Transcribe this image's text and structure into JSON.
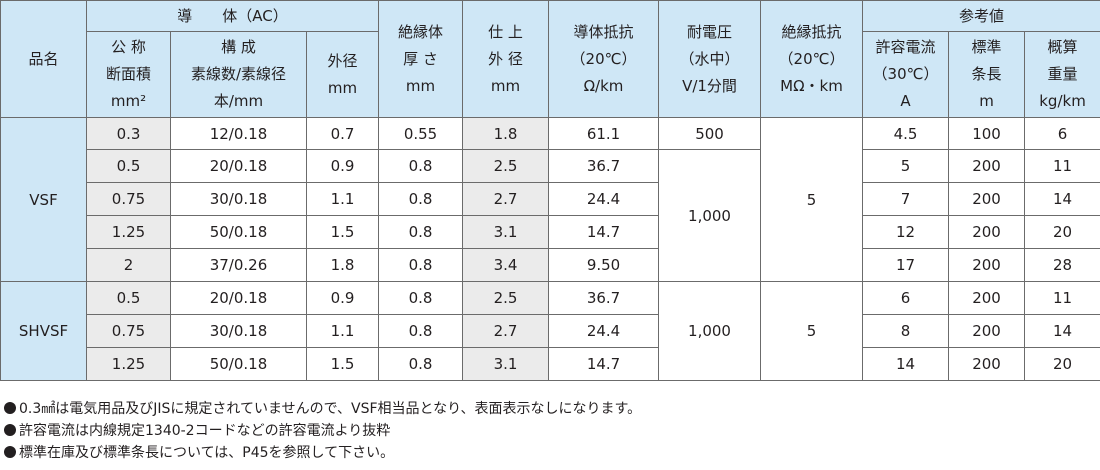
{
  "header": {
    "hinmei": "品名",
    "conductor": "導　　体（AC）",
    "conductor_area": [
      "公 称",
      "断面積",
      "mm²"
    ],
    "conductor_strands": [
      "構 成",
      "素線数/素線径",
      "本/mm"
    ],
    "conductor_od": [
      "外径",
      "mm"
    ],
    "insulation": [
      "絶縁体",
      "厚 さ",
      "mm"
    ],
    "finish": [
      "仕 上",
      "外 径",
      "mm"
    ],
    "resistance": [
      "導体抵抗",
      "（20℃）",
      "Ω/km"
    ],
    "withstand": [
      "耐電圧",
      "（水中）",
      "V/1分間"
    ],
    "insul_resistance": [
      "絶縁抵抗",
      "（20℃）",
      "MΩ・km"
    ],
    "reference": "参考値",
    "current": [
      "許容電流",
      "（30℃）",
      "A"
    ],
    "length": [
      "標準",
      "条長",
      "m"
    ],
    "weight": [
      "概算",
      "重量",
      "kg/km"
    ]
  },
  "groups": [
    {
      "name": "VSF",
      "rows": [
        [
          "0.3",
          "12/0.18",
          "0.7",
          "0.55",
          "1.8",
          "61.1",
          "4.5",
          "100",
          "6"
        ],
        [
          "0.5",
          "20/0.18",
          "0.9",
          "0.8",
          "2.5",
          "36.7",
          "5",
          "200",
          "11"
        ],
        [
          "0.75",
          "30/0.18",
          "1.1",
          "0.8",
          "2.7",
          "24.4",
          "7",
          "200",
          "14"
        ],
        [
          "1.25",
          "50/0.18",
          "1.5",
          "0.8",
          "3.1",
          "14.7",
          "12",
          "200",
          "20"
        ],
        [
          "2",
          "37/0.26",
          "1.8",
          "0.8",
          "3.4",
          "9.50",
          "17",
          "200",
          "28"
        ]
      ],
      "withstand_first": "500",
      "withstand_rest": "1,000",
      "insul_resistance": "5"
    },
    {
      "name": "SHVSF",
      "rows": [
        [
          "0.5",
          "20/0.18",
          "0.9",
          "0.8",
          "2.5",
          "36.7",
          "6",
          "200",
          "11"
        ],
        [
          "0.75",
          "30/0.18",
          "1.1",
          "0.8",
          "2.7",
          "24.4",
          "8",
          "200",
          "14"
        ],
        [
          "1.25",
          "50/0.18",
          "1.5",
          "0.8",
          "3.1",
          "14.7",
          "14",
          "200",
          "20"
        ]
      ],
      "withstand": "1,000",
      "insul_resistance": "5"
    }
  ],
  "notes": [
    "0.3㎟は電気用品及びJISに規定されていませんので、VSF相当品となり、表面表示なしになります。",
    "許容電流は内線規定1340-2コードなどの許容電流より抜粋",
    "標準在庫及び標準条長については、P45を参照して下さい。"
  ]
}
